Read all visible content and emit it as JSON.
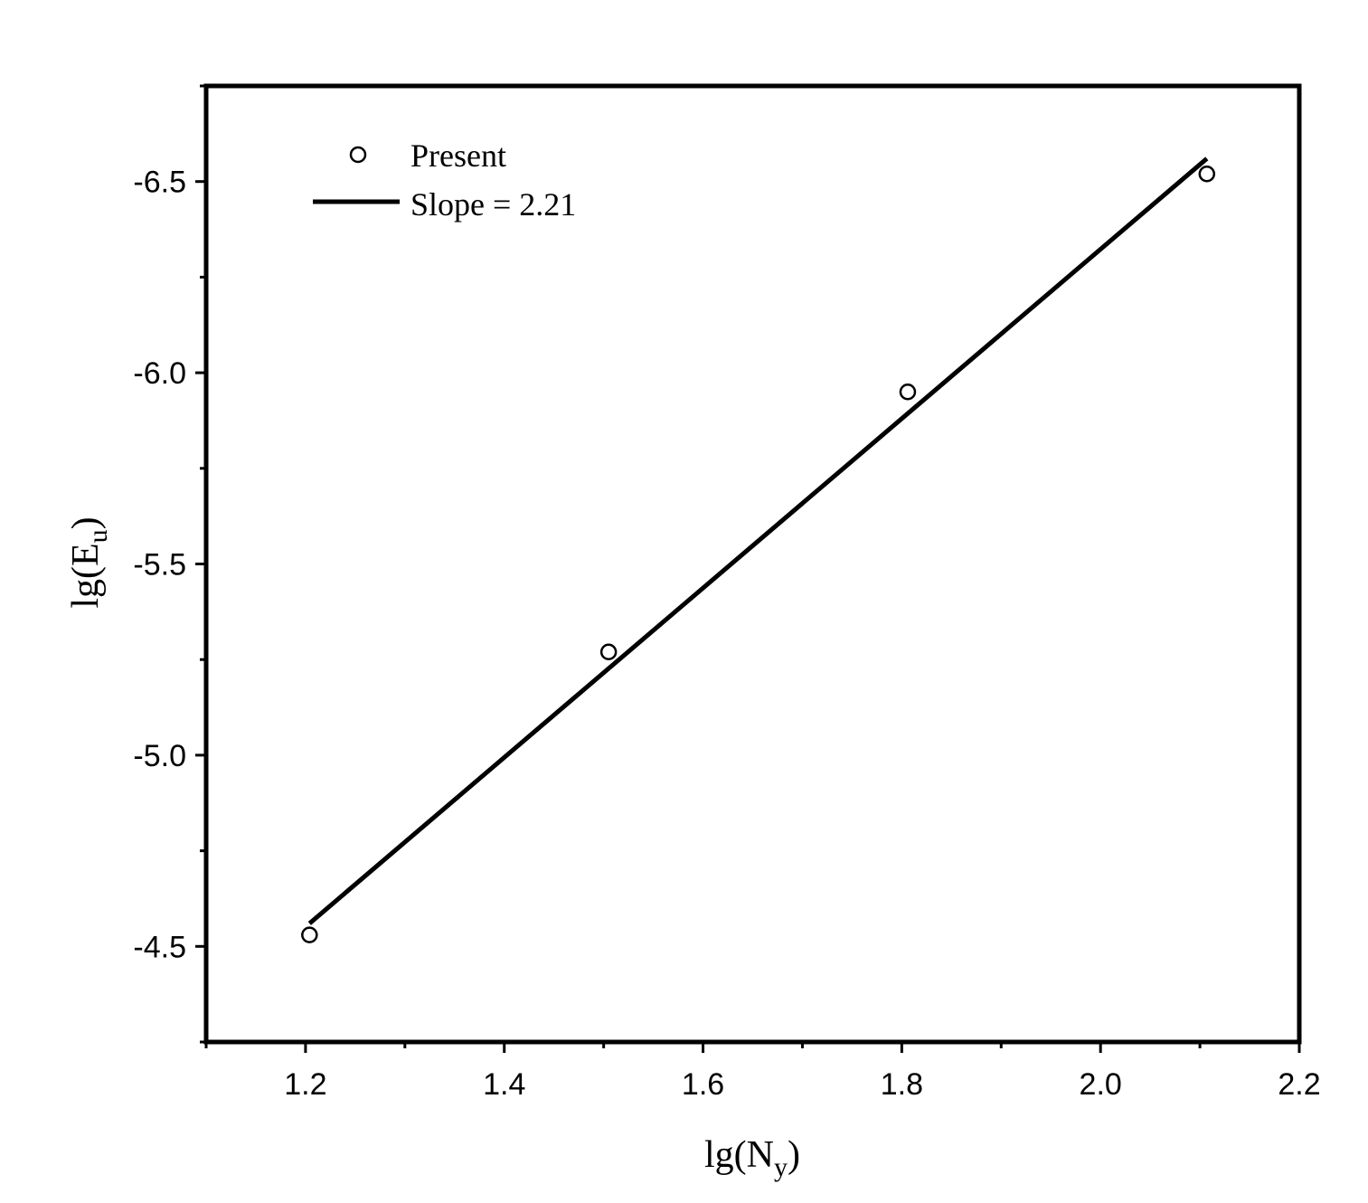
{
  "chart_data": {
    "type": "scatter",
    "xlabel": {
      "base": "lg(N",
      "sub": "y",
      "close": ")"
    },
    "ylabel": {
      "base": "lg(E",
      "sub": "u",
      "close": ")"
    },
    "xlim": [
      1.1,
      2.2
    ],
    "ylim": [
      -4.25,
      -6.75
    ],
    "y_axis_inverted": true,
    "x_ticks": [
      1.2,
      1.4,
      1.6,
      1.8,
      2.0,
      2.2
    ],
    "x_tick_labels": [
      "1.2",
      "1.4",
      "1.6",
      "1.8",
      "2.0",
      "2.2"
    ],
    "y_ticks": [
      -6.5,
      -6.0,
      -5.5,
      -5.0,
      -4.5
    ],
    "y_tick_labels": [
      "-6.5",
      "-6.0",
      "-5.5",
      "-5.0",
      "-4.5"
    ],
    "grid": false,
    "legend_position": "top-left",
    "series": [
      {
        "name": "Present",
        "kind": "scatter",
        "marker": "open-circle",
        "color": "#000000",
        "x": [
          1.204,
          1.505,
          1.806,
          2.107
        ],
        "y": [
          -4.53,
          -5.27,
          -5.95,
          -6.52
        ]
      },
      {
        "name": "Slope = 2.21",
        "kind": "line",
        "color": "#000000",
        "x": [
          1.204,
          2.107
        ],
        "y": [
          -4.56,
          -6.56
        ]
      }
    ]
  }
}
